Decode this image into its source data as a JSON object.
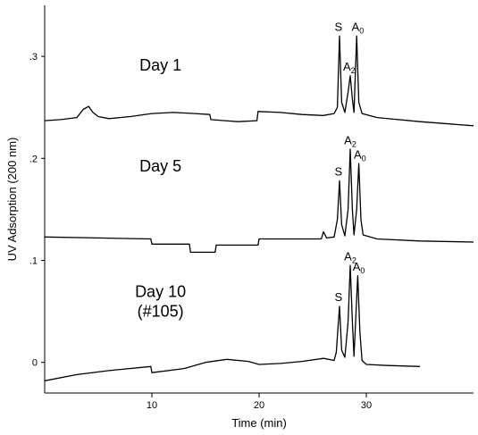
{
  "chart_data": {
    "type": "line",
    "xlabel": "Time (min)",
    "ylabel": "UV Adsorption (200 nm)",
    "xlim": [
      0,
      40
    ],
    "ylim": [
      -0.03,
      0.35
    ],
    "x_ticks": [
      10,
      20,
      30
    ],
    "y_ticks": [
      {
        "value": 0.3,
        "label": ".3"
      },
      {
        "value": 0.2,
        "label": ".2"
      },
      {
        "value": 0.1,
        "label": ".1"
      },
      {
        "value": 0.0,
        "label": "0"
      }
    ],
    "grid": false,
    "series": [
      {
        "label": [
          "Day 1"
        ],
        "label_pos": [
          10.8,
          0.286
        ],
        "trace": [
          [
            0,
            0.237
          ],
          [
            1.5,
            0.238
          ],
          [
            3,
            0.24
          ],
          [
            3.6,
            0.248
          ],
          [
            4.1,
            0.251
          ],
          [
            4.5,
            0.245
          ],
          [
            5,
            0.241
          ],
          [
            6,
            0.239
          ],
          [
            8,
            0.241
          ],
          [
            10,
            0.244
          ],
          [
            12,
            0.245
          ],
          [
            14,
            0.244
          ],
          [
            15.4,
            0.243
          ],
          [
            15.5,
            0.238
          ],
          [
            18,
            0.236
          ],
          [
            19.8,
            0.237
          ],
          [
            19.9,
            0.246
          ],
          [
            22,
            0.245
          ],
          [
            24,
            0.243
          ],
          [
            26,
            0.242
          ],
          [
            27,
            0.244
          ],
          [
            27.3,
            0.25
          ],
          [
            27.5,
            0.32
          ],
          [
            27.7,
            0.255
          ],
          [
            28.0,
            0.245
          ],
          [
            28.3,
            0.265
          ],
          [
            28.5,
            0.281
          ],
          [
            28.7,
            0.258
          ],
          [
            28.85,
            0.245
          ],
          [
            29.1,
            0.32
          ],
          [
            29.3,
            0.255
          ],
          [
            29.6,
            0.244
          ],
          [
            31,
            0.24
          ],
          [
            35,
            0.236
          ],
          [
            40,
            0.232
          ]
        ],
        "peaks": [
          {
            "text": "S",
            "sub": "",
            "x": 27.4,
            "y": 0.325
          },
          {
            "text": "A",
            "sub": "2",
            "x": 28.4,
            "y": 0.286
          },
          {
            "text": "A",
            "sub": "0",
            "x": 29.2,
            "y": 0.325
          }
        ]
      },
      {
        "label": [
          "Day 5"
        ],
        "label_pos": [
          10.8,
          0.187
        ],
        "trace": [
          [
            0,
            0.123
          ],
          [
            5,
            0.122
          ],
          [
            9.9,
            0.121
          ],
          [
            10,
            0.116
          ],
          [
            13.5,
            0.116
          ],
          [
            13.6,
            0.108
          ],
          [
            15.9,
            0.108
          ],
          [
            16,
            0.115
          ],
          [
            19.9,
            0.115
          ],
          [
            20,
            0.121
          ],
          [
            24,
            0.121
          ],
          [
            25.8,
            0.121
          ],
          [
            26,
            0.128
          ],
          [
            26.3,
            0.122
          ],
          [
            27,
            0.123
          ],
          [
            27.3,
            0.14
          ],
          [
            27.5,
            0.178
          ],
          [
            27.7,
            0.135
          ],
          [
            28,
            0.124
          ],
          [
            28.3,
            0.15
          ],
          [
            28.5,
            0.209
          ],
          [
            28.7,
            0.15
          ],
          [
            28.85,
            0.125
          ],
          [
            29.1,
            0.15
          ],
          [
            29.3,
            0.195
          ],
          [
            29.5,
            0.14
          ],
          [
            29.7,
            0.125
          ],
          [
            31,
            0.121
          ],
          [
            35,
            0.119
          ],
          [
            40,
            0.118
          ]
        ],
        "peaks": [
          {
            "text": "S",
            "sub": "",
            "x": 27.4,
            "y": 0.183
          },
          {
            "text": "A",
            "sub": "2",
            "x": 28.5,
            "y": 0.214
          },
          {
            "text": "A",
            "sub": "0",
            "x": 29.4,
            "y": 0.2
          }
        ]
      },
      {
        "label": [
          "Day 10",
          "(#105)"
        ],
        "label_pos": [
          10.8,
          0.064
        ],
        "trace": [
          [
            0,
            -0.018
          ],
          [
            3,
            -0.012
          ],
          [
            6,
            -0.008
          ],
          [
            9.9,
            -0.004
          ],
          [
            10,
            -0.01
          ],
          [
            13,
            -0.006
          ],
          [
            15,
            0.0
          ],
          [
            17,
            0.003
          ],
          [
            19,
            0.001
          ],
          [
            20,
            -0.002
          ],
          [
            22,
            -0.001
          ],
          [
            24,
            0.001
          ],
          [
            26,
            0.004
          ],
          [
            27,
            0.002
          ],
          [
            27.2,
            0.01
          ],
          [
            27.5,
            0.055
          ],
          [
            27.7,
            0.012
          ],
          [
            28,
            0.005
          ],
          [
            28.3,
            0.04
          ],
          [
            28.5,
            0.095
          ],
          [
            28.7,
            0.04
          ],
          [
            28.85,
            0.006
          ],
          [
            29.0,
            0.04
          ],
          [
            29.2,
            0.085
          ],
          [
            29.4,
            0.03
          ],
          [
            29.6,
            0.002
          ],
          [
            30,
            -0.002
          ],
          [
            32,
            -0.003
          ],
          [
            35,
            -0.004
          ]
        ],
        "peaks": [
          {
            "text": "S",
            "sub": "",
            "x": 27.4,
            "y": 0.06
          },
          {
            "text": "A",
            "sub": "2",
            "x": 28.5,
            "y": 0.1
          },
          {
            "text": "A",
            "sub": "0",
            "x": 29.3,
            "y": 0.09
          }
        ]
      }
    ]
  }
}
